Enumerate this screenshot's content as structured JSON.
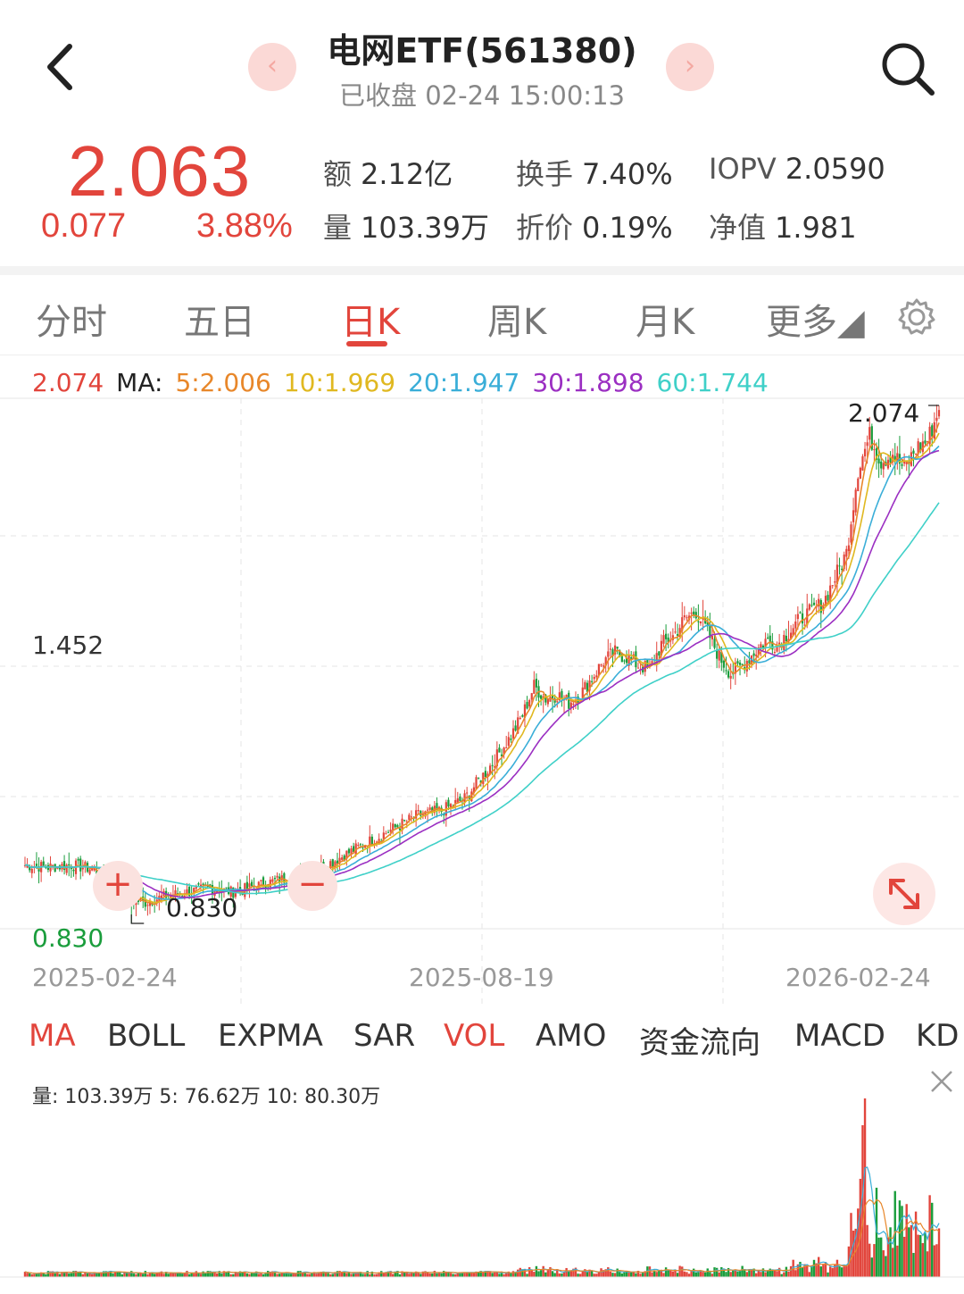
{
  "header": {
    "title": "电网ETF(561380)",
    "status": "已收盘 02-24 15:00:13",
    "prev_glyph": "‹",
    "next_glyph": "›"
  },
  "quote": {
    "price": "2.063",
    "change": "0.077",
    "change_pct": "3.88%",
    "stats": [
      {
        "label": "额",
        "value": "2.12亿"
      },
      {
        "label": "换手",
        "value": "7.40%"
      },
      {
        "label": "IOPV",
        "value": "2.0590"
      },
      {
        "label": "量",
        "value": "103.39万"
      },
      {
        "label": "折价",
        "value": "0.19%"
      },
      {
        "label": "净值",
        "value": "1.981"
      }
    ]
  },
  "tabs": [
    {
      "label": "分时",
      "active": false
    },
    {
      "label": "五日",
      "active": false
    },
    {
      "label": "日K",
      "active": true
    },
    {
      "label": "周K",
      "active": false
    },
    {
      "label": "月K",
      "active": false
    },
    {
      "label": "更多◢",
      "active": false
    }
  ],
  "ma": {
    "current": "2.074",
    "label": "MA:",
    "ma5": "5:2.006",
    "ma10": "10:1.969",
    "ma20": "20:1.947",
    "ma30": "30:1.898",
    "ma60": "60:1.744"
  },
  "chart": {
    "high_label": "2.074",
    "mid_label": "1.452",
    "low_label": "0.830",
    "low_marker": "0.830",
    "dates": [
      "2025-02-24",
      "2025-08-19",
      "2026-02-24"
    ],
    "zoom_in": "+",
    "zoom_out": "−"
  },
  "colors": {
    "up": "#e2453c",
    "down": "#1a9d3c",
    "ma5": "#e8872a",
    "ma10": "#e0b820",
    "ma20": "#3aaed8",
    "ma30": "#9b2fc2",
    "ma60": "#3fd0c8"
  },
  "indicators": [
    {
      "label": "MA",
      "active": true
    },
    {
      "label": "BOLL",
      "active": false
    },
    {
      "label": "EXPMA",
      "active": false
    },
    {
      "label": "SAR",
      "active": false
    },
    {
      "label": "VOL",
      "active": true
    },
    {
      "label": "AMO",
      "active": false
    },
    {
      "label": "资金流向",
      "active": false
    },
    {
      "label": "MACD",
      "active": false
    },
    {
      "label": "KD",
      "active": false
    }
  ],
  "volume": {
    "text": "量:  103.39万   5:  76.62万   10:  80.30万"
  },
  "chart_data": {
    "type": "candlestick",
    "x_range": [
      "2025-02-24",
      "2026-02-24"
    ],
    "ylim": [
      0.83,
      2.074
    ],
    "close_trend": [
      [
        0,
        0.97
      ],
      [
        10,
        0.965
      ],
      [
        20,
        0.97
      ],
      [
        30,
        0.96
      ],
      [
        38,
        0.92
      ],
      [
        45,
        0.89
      ],
      [
        52,
        0.88
      ],
      [
        60,
        0.895
      ],
      [
        70,
        0.905
      ],
      [
        80,
        0.915
      ],
      [
        90,
        0.905
      ],
      [
        100,
        0.92
      ],
      [
        110,
        0.935
      ],
      [
        120,
        0.945
      ],
      [
        130,
        0.97
      ],
      [
        140,
        1.0
      ],
      [
        150,
        1.03
      ],
      [
        160,
        1.06
      ],
      [
        170,
        1.09
      ],
      [
        180,
        1.1
      ],
      [
        190,
        1.13
      ],
      [
        200,
        1.2
      ],
      [
        210,
        1.28
      ],
      [
        215,
        1.33
      ],
      [
        220,
        1.4
      ],
      [
        225,
        1.37
      ],
      [
        230,
        1.38
      ],
      [
        235,
        1.36
      ],
      [
        240,
        1.38
      ],
      [
        245,
        1.42
      ],
      [
        250,
        1.46
      ],
      [
        255,
        1.48
      ],
      [
        260,
        1.47
      ],
      [
        265,
        1.45
      ],
      [
        270,
        1.44
      ],
      [
        275,
        1.5
      ],
      [
        280,
        1.52
      ],
      [
        285,
        1.56
      ],
      [
        290,
        1.58
      ],
      [
        295,
        1.53
      ],
      [
        300,
        1.47
      ],
      [
        305,
        1.43
      ],
      [
        310,
        1.45
      ],
      [
        315,
        1.48
      ],
      [
        320,
        1.51
      ],
      [
        325,
        1.5
      ],
      [
        330,
        1.53
      ],
      [
        335,
        1.56
      ],
      [
        340,
        1.58
      ],
      [
        345,
        1.6
      ],
      [
        350,
        1.66
      ],
      [
        355,
        1.72
      ],
      [
        360,
        1.92
      ],
      [
        365,
        2.0
      ],
      [
        370,
        1.94
      ],
      [
        375,
        1.96
      ],
      [
        380,
        1.92
      ],
      [
        385,
        1.97
      ],
      [
        390,
        1.99
      ],
      [
        395,
        2.063
      ]
    ]
  }
}
